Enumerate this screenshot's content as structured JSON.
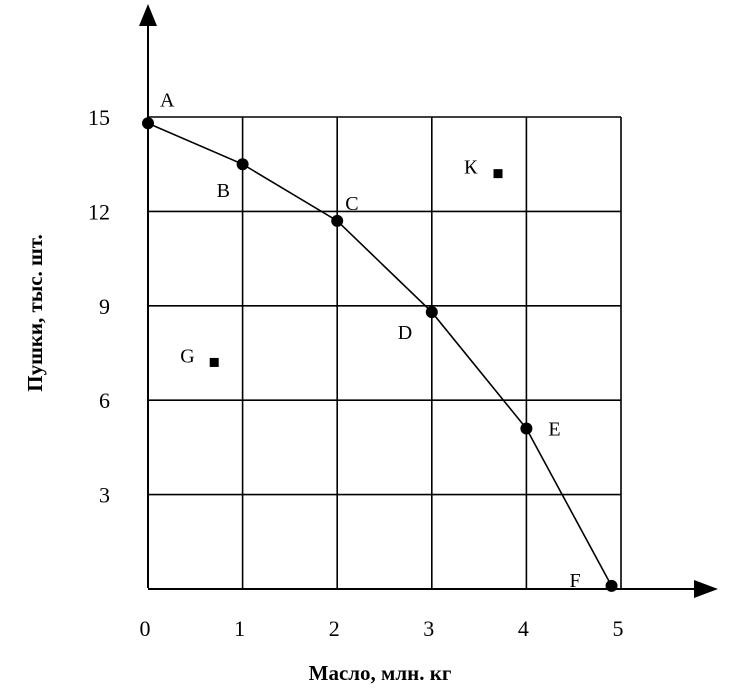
{
  "chart_data": {
    "type": "line",
    "xlabel": "Масло, млн. кг",
    "ylabel": "Пушки, тыс. шт.",
    "xlim": [
      0,
      5
    ],
    "ylim": [
      0,
      15
    ],
    "x_ticks": [
      "0",
      "1",
      "2",
      "3",
      "4",
      "5"
    ],
    "y_ticks": [
      "3",
      "6",
      "9",
      "12",
      "15"
    ],
    "grid": true,
    "curve_points": [
      {
        "label": "A",
        "x": 0.0,
        "y": 14.8
      },
      {
        "label": "B",
        "x": 1.0,
        "y": 13.5
      },
      {
        "label": "C",
        "x": 2.0,
        "y": 11.7
      },
      {
        "label": "D",
        "x": 3.0,
        "y": 8.8
      },
      {
        "label": "E",
        "x": 4.0,
        "y": 5.1
      },
      {
        "label": "F",
        "x": 4.9,
        "y": 0.1
      }
    ],
    "extra_points": [
      {
        "label": "К",
        "x": 3.7,
        "y": 13.2
      },
      {
        "label": "G",
        "x": 0.7,
        "y": 7.2
      }
    ]
  }
}
